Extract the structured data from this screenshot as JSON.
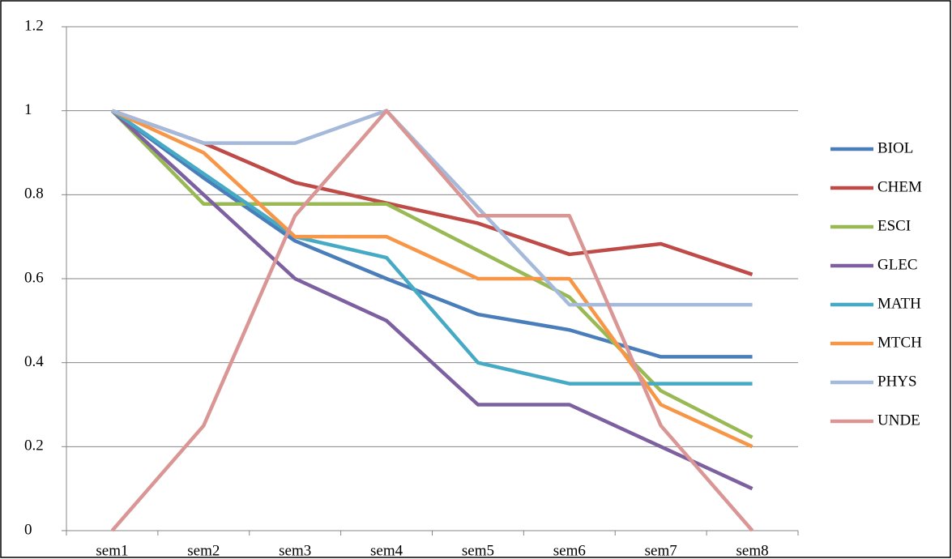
{
  "chart_data": {
    "type": "line",
    "categories": [
      "sem1",
      "sem2",
      "sem3",
      "sem4",
      "sem5",
      "sem6",
      "sem7",
      "sem8"
    ],
    "series": [
      {
        "name": "BIOL",
        "color": "#4a7ebb",
        "values": [
          1,
          0.84,
          0.69,
          0.6,
          0.515,
          0.478,
          0.414,
          0.414
        ]
      },
      {
        "name": "CHEM",
        "color": "#be4b48",
        "values": [
          1,
          0.923,
          0.829,
          0.78,
          0.732,
          0.658,
          0.683,
          0.61
        ]
      },
      {
        "name": "ESCI",
        "color": "#98b954",
        "values": [
          1,
          0.778,
          0.778,
          0.778,
          0.667,
          0.556,
          0.333,
          0.222
        ]
      },
      {
        "name": "GLEC",
        "color": "#7d60a0",
        "values": [
          1,
          0.8,
          0.6,
          0.5,
          0.3,
          0.3,
          0.2,
          0.1
        ]
      },
      {
        "name": "MATH",
        "color": "#46aac5",
        "values": [
          1,
          0.85,
          0.7,
          0.65,
          0.4,
          0.35,
          0.35,
          0.35
        ]
      },
      {
        "name": "MTCH",
        "color": "#f79646",
        "values": [
          1,
          0.9,
          0.7,
          0.7,
          0.6,
          0.6,
          0.3,
          0.2
        ]
      },
      {
        "name": "PHYS",
        "color": "#a5b9da",
        "values": [
          1,
          0.923,
          0.923,
          1,
          0.769,
          0.538,
          0.538,
          0.538
        ]
      },
      {
        "name": "UNDE",
        "color": "#d99694",
        "values": [
          0,
          0.25,
          0.75,
          1,
          0.75,
          0.75,
          0.25,
          0
        ]
      }
    ],
    "ylim": [
      0,
      1.2
    ],
    "yticks": [
      0,
      0.2,
      0.4,
      0.6,
      0.8,
      1,
      1.2
    ],
    "grid": true,
    "legend": "right"
  }
}
